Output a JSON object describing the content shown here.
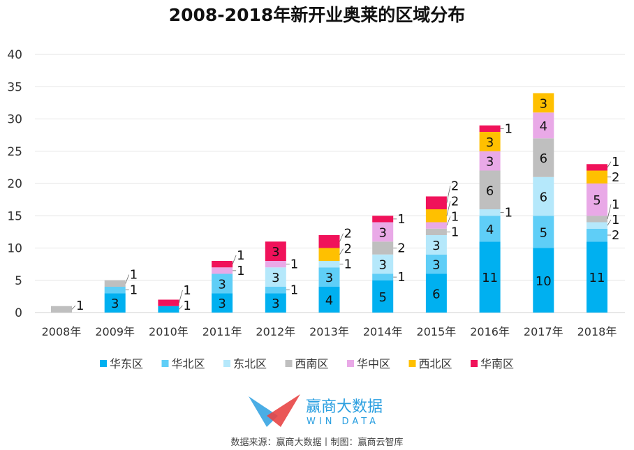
{
  "chart_data": {
    "type": "bar",
    "stacked": true,
    "title": "2008-2018年新开业奥莱的区域分布",
    "xlabel": "",
    "ylabel": "",
    "ylim": [
      0,
      40
    ],
    "yticks": [
      0,
      5,
      10,
      15,
      20,
      25,
      30,
      35,
      40
    ],
    "grid": true,
    "legend_position": "bottom",
    "categories": [
      "2008年",
      "2009年",
      "2010年",
      "2011年",
      "2012年",
      "2013年",
      "2014年",
      "2015年",
      "2016年",
      "2017年",
      "2018年"
    ],
    "series": [
      {
        "name": "华东区",
        "color": "#00b0f0",
        "values": [
          0,
          3,
          1,
          3,
          3,
          4,
          5,
          6,
          11,
          10,
          11
        ]
      },
      {
        "name": "华北区",
        "color": "#5fcef7",
        "values": [
          0,
          1,
          0,
          3,
          1,
          3,
          1,
          3,
          4,
          5,
          2
        ]
      },
      {
        "name": "东北区",
        "color": "#b5e8fb",
        "values": [
          0,
          0,
          0,
          0,
          3,
          1,
          3,
          3,
          1,
          6,
          1
        ]
      },
      {
        "name": "西南区",
        "color": "#bfbfbf",
        "values": [
          1,
          1,
          0,
          0,
          0,
          0,
          2,
          1,
          6,
          6,
          1
        ]
      },
      {
        "name": "华中区",
        "color": "#e9a9e7",
        "values": [
          0,
          0,
          0,
          1,
          1,
          0,
          3,
          1,
          3,
          4,
          5
        ]
      },
      {
        "name": "西北区",
        "color": "#ffc000",
        "values": [
          0,
          0,
          0,
          0,
          0,
          2,
          0,
          2,
          3,
          3,
          2
        ]
      },
      {
        "name": "华南区",
        "color": "#f0125a",
        "values": [
          0,
          0,
          1,
          1,
          3,
          2,
          1,
          2,
          1,
          0,
          1
        ]
      }
    ]
  },
  "watermark": "赢商云智库",
  "logo": {
    "name": "赢商大数据",
    "subtitle": "WIN DATA"
  },
  "footer": "数据来源：赢商大数据丨制图：赢商云智库"
}
